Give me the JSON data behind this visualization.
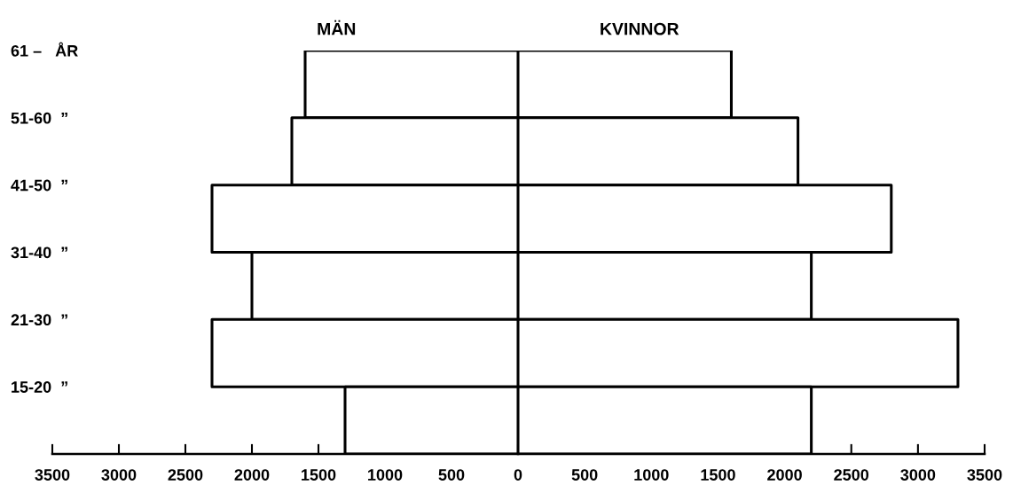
{
  "chart_data": [
    {
      "type": "bar",
      "orientation": "horizontal",
      "title": "MÄN",
      "categories": [
        "61 –   ÅR",
        "51-60  ”",
        "41-50  ”",
        "31-40  ”",
        "21-30  ”",
        "15-20  ”"
      ],
      "series": [
        {
          "color": "#000000",
          "values": [
            1600,
            1700,
            2300,
            2000,
            2300,
            1300
          ]
        }
      ],
      "xlim": [
        3500,
        0
      ],
      "xticks": [
        3500,
        3000,
        2500,
        2000,
        1500,
        1000,
        500
      ],
      "grid": false
    },
    {
      "type": "bar",
      "orientation": "horizontal",
      "title": "KVINNOR",
      "categories": [
        null,
        null,
        null,
        null,
        null,
        null
      ],
      "series": [
        {
          "color": "#000000",
          "values": [
            1600,
            2100,
            2800,
            2200,
            3300,
            2200
          ]
        }
      ],
      "xlim": [
        0,
        3500
      ],
      "xticks": [
        0,
        500,
        1000,
        1500,
        2000,
        2500,
        3000,
        3500
      ],
      "tick_labels": "x",
      "grid": false
    }
  ]
}
